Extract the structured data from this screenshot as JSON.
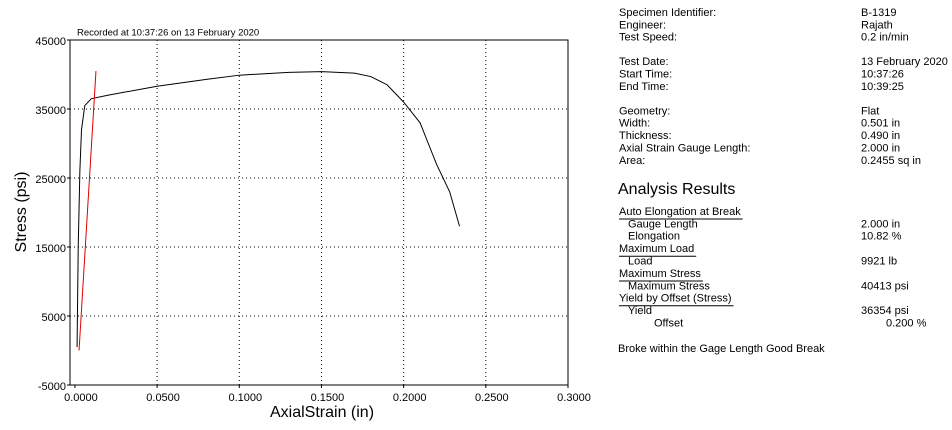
{
  "chart_data": {
    "type": "line",
    "title": "Recorded at 10:37:26 on 13 February 2020",
    "x_label": "AxialStrain (in)",
    "y_label": "Stress (psi)",
    "xlim": [
      -0.003,
      0.3
    ],
    "ylim": [
      -5000,
      45000
    ],
    "xticks": [
      {
        "value": 0,
        "label": "0.0000"
      },
      {
        "value": 0.05,
        "label": "0.0500"
      },
      {
        "value": 0.1,
        "label": "0.1000"
      },
      {
        "value": 0.15,
        "label": "0.1500"
      },
      {
        "value": 0.2,
        "label": "0.2000"
      },
      {
        "value": 0.25,
        "label": "0.2500"
      },
      {
        "value": 0.3,
        "label": "0.3000"
      }
    ],
    "yticks": [
      -5000,
      5000,
      15000,
      25000,
      35000,
      45000
    ],
    "grid": true,
    "series": [
      {
        "color": "#000000",
        "x": [
          0.0013,
          0.002,
          0.003,
          0.004,
          0.006,
          0.01,
          0.02,
          0.05,
          0.08,
          0.1,
          0.13,
          0.15,
          0.17,
          0.18,
          0.19,
          0.2,
          0.205,
          0.21,
          0.215,
          0.22,
          0.228,
          0.234
        ],
        "values": [
          500,
          15000,
          26000,
          32000,
          35500,
          36500,
          37000,
          38300,
          39300,
          39900,
          40300,
          40413,
          40200,
          39700,
          38500,
          36000,
          34500,
          33000,
          30000,
          27000,
          23000,
          18000
        ]
      },
      {
        "color": "#e00000",
        "x": [
          0.0025,
          0.0128
        ],
        "values": [
          0,
          40500
        ]
      }
    ]
  },
  "report": {
    "info": [
      [
        [
          "Specimen Identifier:",
          "B-1319"
        ],
        [
          "Engineer:",
          "Rajath"
        ],
        [
          "Test Speed:",
          "0.2 in/min"
        ]
      ],
      [
        [
          "Test Date:",
          "13 February 2020"
        ],
        [
          "Start Time:",
          "10:37:26"
        ],
        [
          "End Time:",
          "10:39:25"
        ]
      ],
      [
        [
          "Geometry:",
          "Flat"
        ],
        [
          "Width:",
          "0.501 in"
        ],
        [
          "Thickness:",
          "0.490 in"
        ],
        [
          "Axial Strain Gauge Length:",
          "2.000 in"
        ],
        [
          "Area:",
          "0.2455 sq in"
        ]
      ]
    ],
    "analysis_title": "Analysis Results",
    "sections": [
      {
        "heading": "Auto Elongation at Break",
        "items": [
          {
            "label": "Gauge Length",
            "value": "2.000 in"
          },
          {
            "label": "Elongation",
            "value": "10.82 %"
          }
        ]
      },
      {
        "heading": "Maximum Load",
        "items": [
          {
            "label": "Load",
            "value": "9921 lb"
          }
        ]
      },
      {
        "heading": "Maximum Stress",
        "items": [
          {
            "label": "Maximum Stress",
            "value": "40413 psi"
          }
        ]
      },
      {
        "heading": "Yield by Offset (Stress)",
        "items": [
          {
            "label": "Yield",
            "value": "36354 psi",
            "sub": {
              "label": "Offset",
              "value": "0.200 %"
            }
          }
        ]
      }
    ],
    "footer": "Broke within the Gage Length Good Break"
  }
}
